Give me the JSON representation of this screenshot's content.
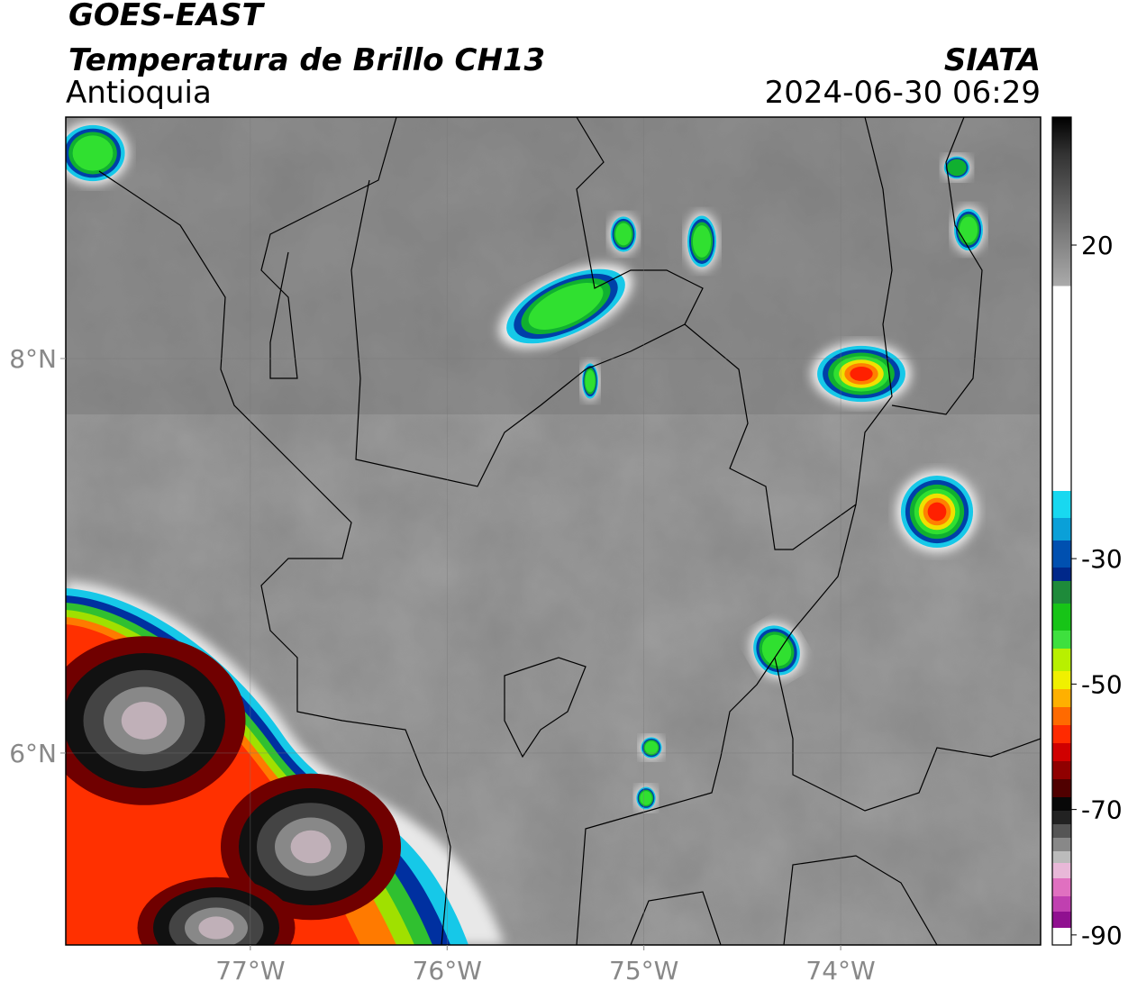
{
  "header": {
    "title": "GOES-EAST",
    "subtitle": "Temperatura de Brillo CH13",
    "region": "Antioquia",
    "source": "SIATA",
    "datetime": "2024-06-30 06:29"
  },
  "map": {
    "xlim": [
      -77.938,
      -72.984
    ],
    "ylim": [
      5.027,
      9.224
    ],
    "xticks": [
      {
        "value": -77,
        "label": "77°W"
      },
      {
        "value": -76,
        "label": "76°W"
      },
      {
        "value": -75,
        "label": "75°W"
      },
      {
        "value": -74,
        "label": "74°W"
      }
    ],
    "yticks": [
      {
        "value": 8,
        "label": "8°N"
      },
      {
        "value": 6,
        "label": "6°N"
      }
    ]
  },
  "colorbar": {
    "lim": [
      -91.6,
      40.4
    ],
    "ticks": [
      20,
      -30,
      -50,
      -70,
      -90
    ]
  }
}
